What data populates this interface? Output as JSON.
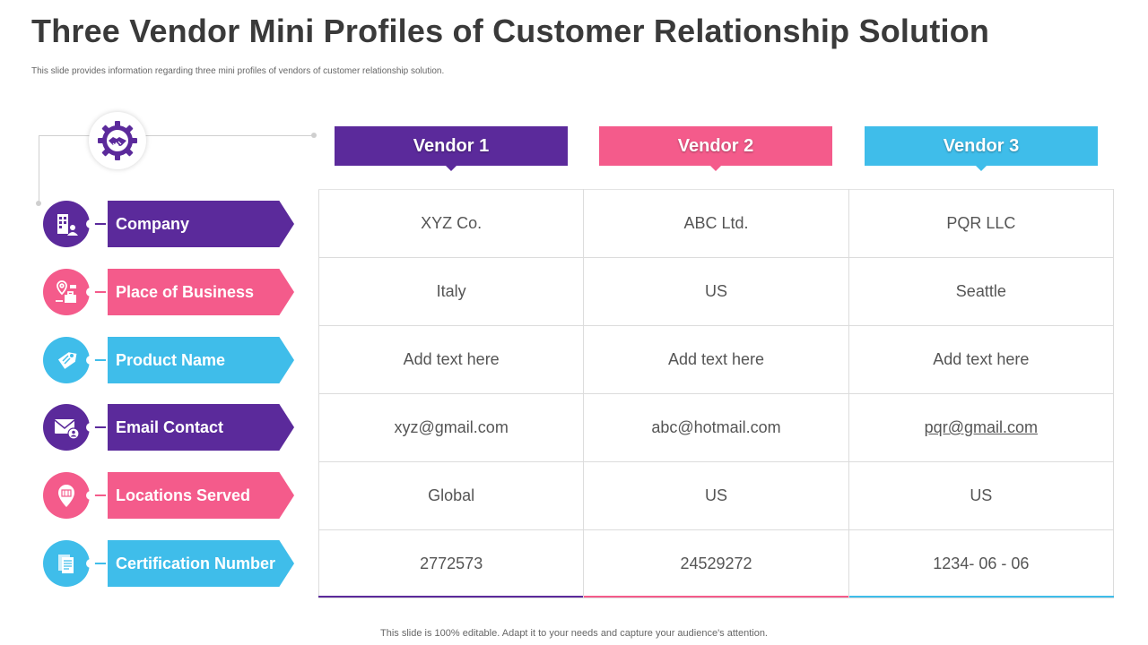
{
  "slide": {
    "title": "Three Vendor Mini Profiles of Customer Relationship Solution",
    "subtitle": "This slide provides information regarding three mini profiles of vendors of customer relationship solution.",
    "footer": "This slide is 100% editable. Adapt it to your needs and capture your audience's attention."
  },
  "hub": {
    "icon": "handshake-gear-icon"
  },
  "colors": {
    "purple": "#5b2a9b",
    "pink": "#f45b8b",
    "blue": "#3fbdea"
  },
  "vendors": [
    {
      "label": "Vendor 1",
      "color": "#5b2a9b"
    },
    {
      "label": "Vendor 2",
      "color": "#f45b8b"
    },
    {
      "label": "Vendor 3",
      "color": "#3fbdea"
    }
  ],
  "rows": [
    {
      "label": "Company",
      "icon": "building-user-icon",
      "color": "purple",
      "values": [
        "XYZ Co.",
        "ABC Ltd.",
        "PQR LLC"
      ]
    },
    {
      "label": "Place of Business",
      "icon": "location-briefcase-icon",
      "color": "pink",
      "values": [
        "Italy",
        "US",
        "Seattle"
      ]
    },
    {
      "label": "Product Name",
      "icon": "price-tag-icon",
      "color": "blue",
      "values": [
        "Add text here",
        "Add text here",
        "Add text here"
      ]
    },
    {
      "label": "Email Contact",
      "icon": "envelope-user-icon",
      "color": "purple",
      "values": [
        "xyz@gmail.com",
        "abc@hotmail.com",
        "pqr@gmail.com"
      ]
    },
    {
      "label": "Locations Served",
      "icon": "map-pin-icon",
      "color": "pink",
      "values": [
        "Global",
        "US",
        "US"
      ]
    },
    {
      "label": "Certification Number",
      "icon": "documents-icon",
      "color": "blue",
      "values": [
        "2772573",
        "24529272",
        "1234- 06 - 06"
      ]
    }
  ]
}
